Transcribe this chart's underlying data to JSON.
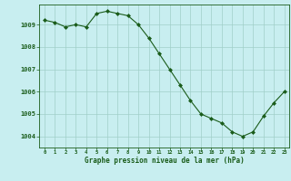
{
  "x": [
    0,
    1,
    2,
    3,
    4,
    5,
    6,
    7,
    8,
    9,
    10,
    11,
    12,
    13,
    14,
    15,
    16,
    17,
    18,
    19,
    20,
    21,
    22,
    23
  ],
  "y": [
    1009.2,
    1009.1,
    1008.9,
    1009.0,
    1008.9,
    1009.5,
    1009.6,
    1009.5,
    1009.4,
    1009.0,
    1008.4,
    1007.7,
    1007.0,
    1006.3,
    1005.6,
    1005.0,
    1004.8,
    1004.6,
    1004.2,
    1004.0,
    1004.2,
    1004.9,
    1005.5,
    1006.0
  ],
  "line_color": "#1a5c1a",
  "marker_color": "#1a5c1a",
  "bg_color": "#c8eef0",
  "grid_color": "#a0cfc8",
  "xlabel": "Graphe pression niveau de la mer (hPa)",
  "label_color": "#1a5c1a",
  "ylabel_ticks": [
    1004,
    1005,
    1006,
    1007,
    1008,
    1009
  ],
  "xlim": [
    -0.5,
    23.5
  ],
  "ylim": [
    1003.5,
    1009.9
  ],
  "tick_color": "#1a5c1a",
  "figsize": [
    3.2,
    2.0
  ],
  "dpi": 100
}
